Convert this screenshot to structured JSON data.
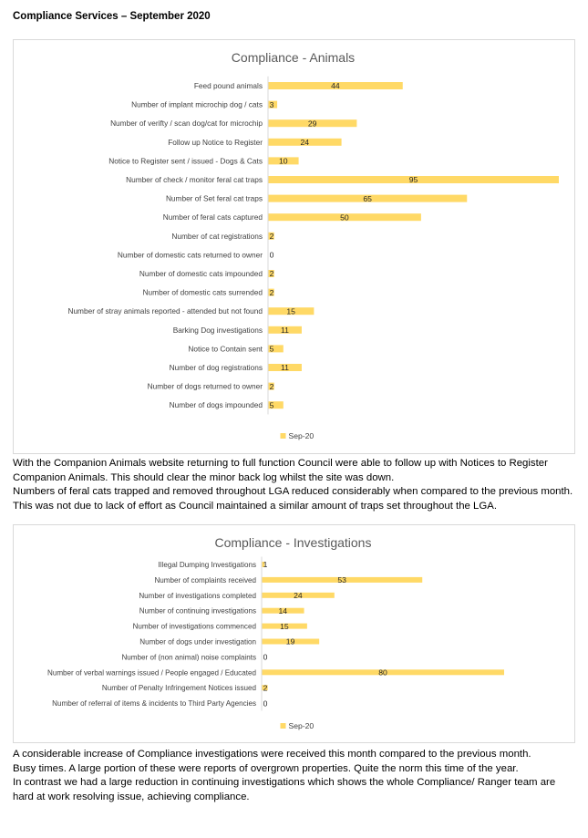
{
  "document": {
    "title": "Compliance Services – September 2020",
    "paragraph_1": [
      "With the Companion Animals website returning to full function Council were able to follow up with Notices to Register Companion Animals. This should clear the minor back log whilst the site was down.",
      "Numbers of feral cats trapped and removed throughout LGA reduced considerably when compared to the previous month. This was not due to lack of effort as Council maintained a similar amount of traps set throughout the LGA."
    ],
    "paragraph_2": [
      "A considerable increase of Compliance investigations were received this month compared to the previous month.",
      "Busy times.  A large portion of these were reports of overgrown properties. Quite the norm this time of the year.",
      "In contrast we had a large reduction in continuing investigations which shows the whole Compliance/ Ranger team are hard at work resolving issue, achieving compliance."
    ]
  },
  "colors": {
    "bar": "#ffd966",
    "axis": "#d9d9d9",
    "title_text": "#595959",
    "label_text": "#404040"
  },
  "chart_data": [
    {
      "type": "bar",
      "orientation": "horizontal",
      "title": "Compliance - Animals",
      "categories": [
        "Feed pound animals",
        "Number of implant microchip dog / cats",
        "Number of verifty / scan dog/cat for microchip",
        "Follow up Notice to Register",
        "Notice to Register sent / issued - Dogs & Cats",
        "Number of check / monitor feral cat traps",
        "Number of Set feral cat traps",
        "Number of feral cats captured",
        "Number of cat registrations",
        "Number of domestic cats returned to owner",
        "Number of domestic cats impounded",
        "Number of domestic cats surrended",
        "Number of stray animals reported - attended but not found",
        "Barking Dog investigations",
        "Notice to Contain sent",
        "Number of dog registrations",
        "Number of dogs returned to owner",
        "Number of dogs impounded"
      ],
      "series": [
        {
          "name": "Sep-20",
          "values": [
            44,
            3,
            29,
            24,
            10,
            95,
            65,
            50,
            2,
            0,
            2,
            2,
            15,
            11,
            5,
            11,
            2,
            5
          ]
        }
      ],
      "xlim": [
        0,
        95
      ],
      "legend": "bottom",
      "grid": false
    },
    {
      "type": "bar",
      "orientation": "horizontal",
      "title": "Compliance - Investigations",
      "categories": [
        "Illegal Dumping Investigations",
        "Number of complaints received",
        "Number of investigations completed",
        "Number of continuing investigations",
        "Number of investigations commenced",
        "Number of dogs under investigation",
        "Number of (non animal) noise complaints",
        "Number of verbal warnings issued  / People engaged / Educated",
        "Number of Penalty Infringement Notices issued",
        "Number of referral of items & incidents to Third Party Agencies"
      ],
      "series": [
        {
          "name": "Sep-20",
          "values": [
            1,
            53,
            24,
            14,
            15,
            19,
            0,
            80,
            2,
            0
          ]
        }
      ],
      "xlim": [
        0,
        80
      ],
      "legend": "bottom",
      "grid": false
    }
  ]
}
